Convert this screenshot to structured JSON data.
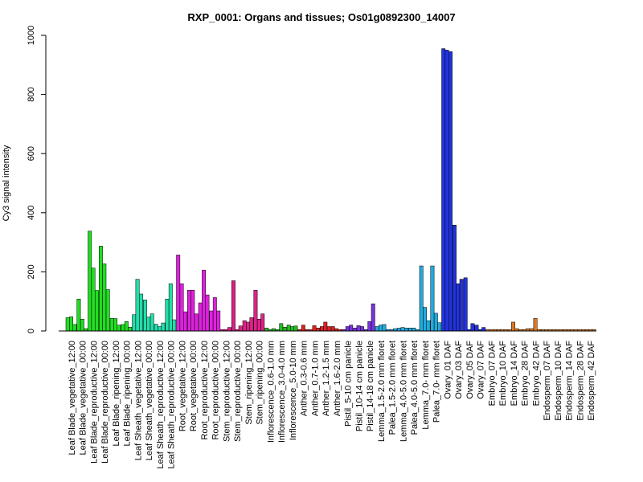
{
  "chart_data": {
    "type": "bar",
    "title": "RXP_0001: Organs and tissues; Os01g0892300_14007",
    "ylabel": "Cy3 signal intensity",
    "xlabel": "",
    "ylim": [
      0,
      1000
    ],
    "yticks": [
      0,
      200,
      400,
      600,
      800,
      1000
    ],
    "grid": false,
    "groups": [
      {
        "label": "Leaf Blade_vegetative_12:00",
        "color": "#22dd22",
        "values": [
          45,
          48,
          22
        ]
      },
      {
        "label": "Leaf Blade_vegetative_00:00",
        "color": "#22dd22",
        "values": [
          108,
          40,
          8
        ]
      },
      {
        "label": "Leaf Blade_reproductive_12:00",
        "color": "#22dd22",
        "values": [
          338,
          213,
          137
        ]
      },
      {
        "label": "Leaf Blade_reproductive_00:00",
        "color": "#22dd22",
        "values": [
          287,
          227,
          140
        ]
      },
      {
        "label": "Leaf Blade_ripening_12:00",
        "color": "#22dd22",
        "values": [
          43,
          42,
          20
        ]
      },
      {
        "label": "Leaf Blade_ripening_00:00",
        "color": "#22dd22",
        "values": [
          22,
          32,
          13
        ]
      },
      {
        "label": "Leaf Sheath_vegetative_12:00",
        "color": "#22ddaa",
        "values": [
          55,
          175,
          125
        ]
      },
      {
        "label": "Leaf Sheath_vegetative_00:00",
        "color": "#22ddaa",
        "values": [
          105,
          47,
          58
        ]
      },
      {
        "label": "Leaf Sheath_reproductive_12:00",
        "color": "#22ddaa",
        "values": [
          23,
          15,
          27
        ]
      },
      {
        "label": "Leaf Sheath_reproductive_00:00",
        "color": "#22ddaa",
        "values": [
          108,
          160,
          38
        ]
      },
      {
        "label": "Root_vegetative_12:00",
        "color": "#dd22dd",
        "values": [
          257,
          160,
          65
        ]
      },
      {
        "label": "Root_vegetative_00:00",
        "color": "#dd22dd",
        "values": [
          138,
          138,
          58
        ]
      },
      {
        "label": "Root_reproductive_12:00",
        "color": "#dd22dd",
        "values": [
          95,
          206,
          122
        ]
      },
      {
        "label": "Root_reproductive_00:00",
        "color": "#dd22dd",
        "values": [
          68,
          113,
          68
        ]
      },
      {
        "label": "Stem_reproductive_12:00",
        "color": "#dd2288",
        "values": [
          5,
          5,
          12
        ]
      },
      {
        "label": "Stem_reproductive_00:00",
        "color": "#dd2288",
        "values": [
          170,
          5,
          17
        ]
      },
      {
        "label": "Stem_ripening_12:00",
        "color": "#dd2288",
        "values": [
          35,
          30,
          45
        ]
      },
      {
        "label": "Stem_ripening_00:00",
        "color": "#dd2288",
        "values": [
          138,
          40,
          58
        ]
      },
      {
        "label": "Inflorescence_0.6-1.0 mm",
        "color": "#22bb22",
        "values": [
          10,
          5,
          8
        ]
      },
      {
        "label": "Inflorescence_3.0-4.0 mm",
        "color": "#22bb22",
        "values": [
          5,
          25,
          13
        ]
      },
      {
        "label": "Inflorescence_5.0-10 mm",
        "color": "#22bb22",
        "values": [
          20,
          15,
          17
        ]
      },
      {
        "label": "Anther_0.3-0.6 mm",
        "color": "#dd2222",
        "values": [
          5,
          20,
          5
        ]
      },
      {
        "label": "Anther_0.7-1.0 mm",
        "color": "#dd2222",
        "values": [
          5,
          18,
          10
        ]
      },
      {
        "label": "Anther_1.2-1.5 mm",
        "color": "#dd2222",
        "values": [
          15,
          30,
          15
        ]
      },
      {
        "label": "Anther_1.6-2.0 mm",
        "color": "#dd2222",
        "values": [
          15,
          8,
          5
        ]
      },
      {
        "label": "Pistil_5-10 cm panicle",
        "color": "#7733dd",
        "values": [
          5,
          15,
          20
        ]
      },
      {
        "label": "Pistil_10-14 cm panicle",
        "color": "#7733dd",
        "values": [
          10,
          18,
          15
        ]
      },
      {
        "label": "Pistil_14-18 cm panicle",
        "color": "#7733dd",
        "values": [
          5,
          32,
          92
        ]
      },
      {
        "label": "Lemma_1.5-2.0 mm floret",
        "color": "#22aadd",
        "values": [
          15,
          20,
          22
        ]
      },
      {
        "label": "Palea_1.5-2.0 mm floret",
        "color": "#22aadd",
        "values": [
          5,
          5,
          8
        ]
      },
      {
        "label": "Lemma_4.0-5.0 mm floret",
        "color": "#22aadd",
        "values": [
          10,
          12,
          10
        ]
      },
      {
        "label": "Palea_4.0-5.0 mm floret",
        "color": "#22aadd",
        "values": [
          10,
          10,
          5
        ]
      },
      {
        "label": "Lemma_7.0- mm floret",
        "color": "#22aadd",
        "values": [
          220,
          80,
          35
        ]
      },
      {
        "label": "Palea_7.0- mm floret",
        "color": "#22aadd",
        "values": [
          220,
          60,
          28
        ]
      },
      {
        "label": "Ovary_01 DAF",
        "color": "#2233dd",
        "values": [
          955,
          950,
          945
        ]
      },
      {
        "label": "Ovary_03 DAF",
        "color": "#2233dd",
        "values": [
          358,
          160,
          175
        ]
      },
      {
        "label": "Ovary_05 DAF",
        "color": "#2233dd",
        "values": [
          180,
          5,
          25
        ]
      },
      {
        "label": "Ovary_07 DAF",
        "color": "#2233dd",
        "values": [
          20,
          5,
          12
        ]
      },
      {
        "label": "Embryo_07 DAF",
        "color": "#dd7722",
        "values": [
          5,
          5,
          5
        ]
      },
      {
        "label": "Embryo_10 DAF",
        "color": "#dd7722",
        "values": [
          5,
          5,
          5
        ]
      },
      {
        "label": "Embryo_14 DAF",
        "color": "#dd7722",
        "values": [
          5,
          30,
          8
        ]
      },
      {
        "label": "Embryo_28 DAF",
        "color": "#dd7722",
        "values": [
          5,
          5,
          8
        ]
      },
      {
        "label": "Embryo_42 DAF",
        "color": "#dd7722",
        "values": [
          8,
          43,
          5
        ]
      },
      {
        "label": "Endosperm_07 DAF",
        "color": "#dd7722",
        "values": [
          5,
          5,
          5
        ]
      },
      {
        "label": "Endosperm_10 DAF",
        "color": "#dd7722",
        "values": [
          5,
          5,
          5
        ]
      },
      {
        "label": "Endosperm_14 DAF",
        "color": "#dd7722",
        "values": [
          5,
          5,
          5
        ]
      },
      {
        "label": "Endosperm_28 DAF",
        "color": "#dd7722",
        "values": [
          5,
          5,
          5
        ]
      },
      {
        "label": "Endosperm_42 DAF",
        "color": "#dd7722",
        "values": [
          5,
          5,
          5
        ]
      }
    ]
  }
}
